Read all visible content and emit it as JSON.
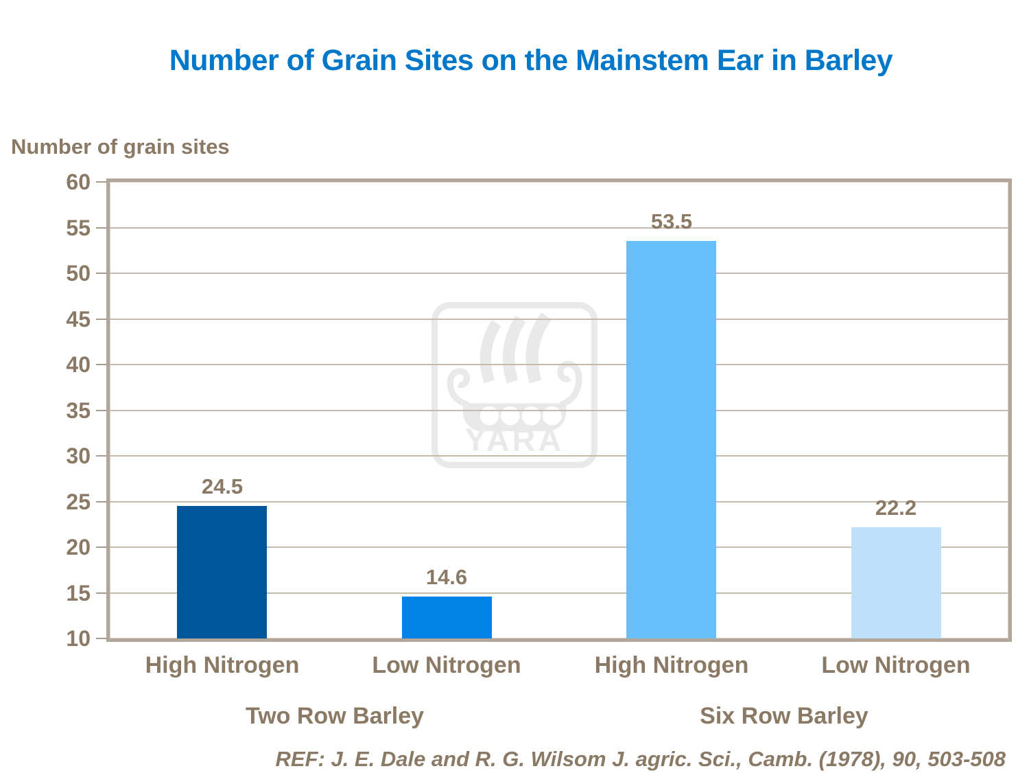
{
  "title": "Number of Grain Sites on the Mainstem Ear in Barley",
  "y_axis_title": "Number of grain sites",
  "reference": "REF: J. E. Dale and R. G. Wilsom J. agric. Sci., Camb. (1978), 90, 503-508",
  "watermark": {
    "icon": "yara-viking-ship-logo",
    "text": "YARA"
  },
  "colors": {
    "title_blue": "#0077C8",
    "label_brown": "#8A7964",
    "gridline": "#C3B9AC",
    "plot_frame": "#B2A698",
    "watermark_gray": "#E9E9E9",
    "bar_colors": [
      "#00569B",
      "#0082E6",
      "#66BEFA",
      "#BEE0F8"
    ]
  },
  "chart_data": {
    "type": "bar",
    "title": "Number of Grain Sites on the Mainstem Ear in Barley",
    "xlabel": "",
    "ylabel": "Number of grain sites",
    "ylim": [
      10,
      60
    ],
    "ytick_step": 5,
    "yticks": [
      "60",
      "55",
      "50",
      "45",
      "40",
      "35",
      "30",
      "25",
      "20",
      "15",
      "10"
    ],
    "grid": true,
    "legend": false,
    "categories": [
      "High Nitrogen",
      "Low Nitrogen",
      "High Nitrogen",
      "Low Nitrogen"
    ],
    "groups": [
      "Two Row Barley",
      "Six Row Barley"
    ],
    "values": [
      24.5,
      14.6,
      53.5,
      22.2
    ],
    "value_labels": [
      "24.5",
      "14.6",
      "53.5",
      "22.2"
    ],
    "bar_colors": [
      "#00569B",
      "#0082E6",
      "#66BEFA",
      "#BEE0F8"
    ]
  }
}
